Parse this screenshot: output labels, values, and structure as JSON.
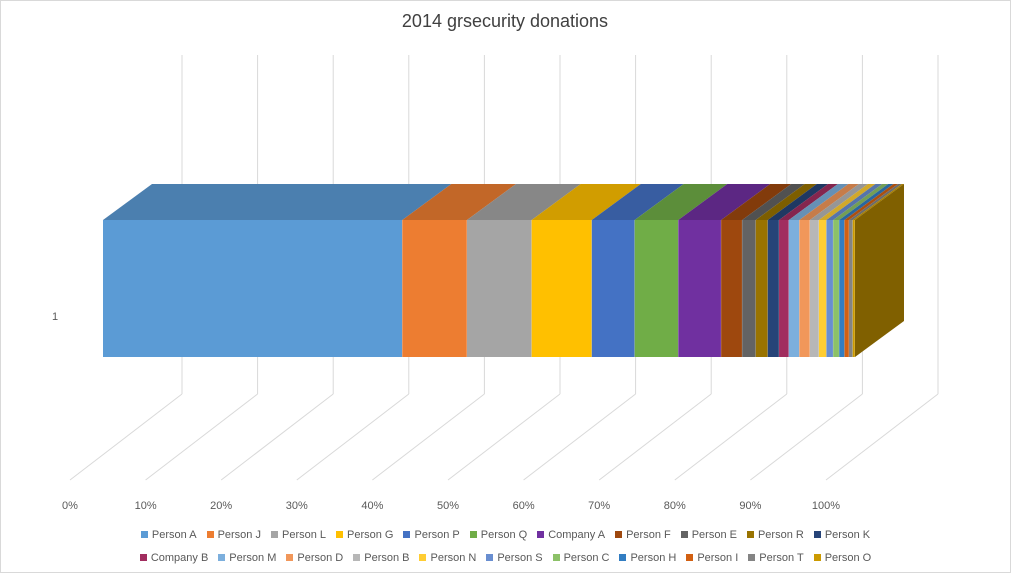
{
  "chart_data": {
    "type": "bar",
    "subtype": "3d-100%-stacked-horizontal",
    "title": "2014 grsecurity donations",
    "categories": [
      "1"
    ],
    "x_ticks": [
      "0%",
      "10%",
      "20%",
      "30%",
      "40%",
      "50%",
      "60%",
      "70%",
      "80%",
      "90%",
      "100%"
    ],
    "xlim": [
      0,
      100
    ],
    "grid": true,
    "legend_position": "bottom",
    "series": [
      {
        "name": "Person A",
        "value": 39.8,
        "color": "#5B9BD5"
      },
      {
        "name": "Person J",
        "value": 8.6,
        "color": "#ED7D31"
      },
      {
        "name": "Person L",
        "value": 8.6,
        "color": "#A5A5A5"
      },
      {
        "name": "Person G",
        "value": 8.0,
        "color": "#FFC000"
      },
      {
        "name": "Person P",
        "value": 5.7,
        "color": "#4472C4"
      },
      {
        "name": "Person Q",
        "value": 5.8,
        "color": "#70AD47"
      },
      {
        "name": "Company A",
        "value": 5.7,
        "color": "#7030A0"
      },
      {
        "name": "Person F",
        "value": 2.8,
        "color": "#9E480E"
      },
      {
        "name": "Person E",
        "value": 1.8,
        "color": "#636363"
      },
      {
        "name": "Person R",
        "value": 1.6,
        "color": "#997300"
      },
      {
        "name": "Person K",
        "value": 1.5,
        "color": "#264478"
      },
      {
        "name": "Company B",
        "value": 1.3,
        "color": "#A12D5F"
      },
      {
        "name": "Person M",
        "value": 1.4,
        "color": "#7CAFDD"
      },
      {
        "name": "Person D",
        "value": 1.4,
        "color": "#F1975A"
      },
      {
        "name": "Person B",
        "value": 1.2,
        "color": "#B7B7B7"
      },
      {
        "name": "Person N",
        "value": 1.0,
        "color": "#FFCD33"
      },
      {
        "name": "Person S",
        "value": 0.9,
        "color": "#698ED0"
      },
      {
        "name": "Person C",
        "value": 0.8,
        "color": "#8CC168"
      },
      {
        "name": "Person H",
        "value": 0.7,
        "color": "#327DC2"
      },
      {
        "name": "Person I",
        "value": 0.6,
        "color": "#D26012"
      },
      {
        "name": "Person T",
        "value": 0.5,
        "color": "#848484"
      },
      {
        "name": "Person O",
        "value": 0.3,
        "color": "#CC9A00"
      }
    ]
  }
}
